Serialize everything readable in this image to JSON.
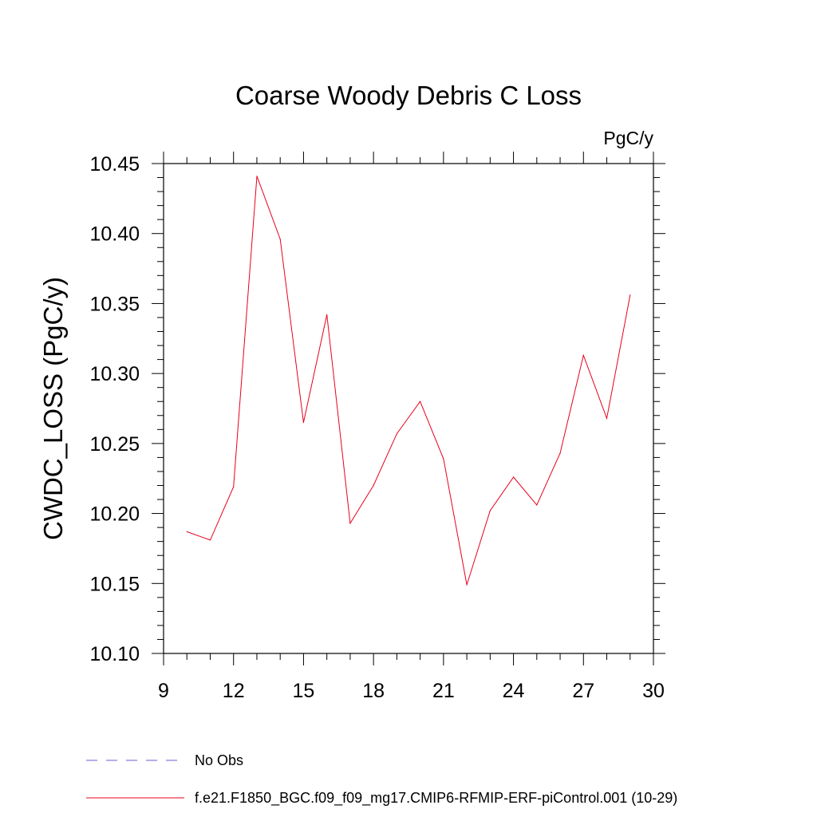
{
  "chart_data": {
    "type": "line",
    "title": "Coarse Woody Debris C Loss",
    "units_label": "PgC/y",
    "ylabel": "CWDC_LOSS  (PgC/y)",
    "xlabel": "",
    "xlim": [
      9,
      30
    ],
    "ylim": [
      10.1,
      10.45
    ],
    "x_ticks": [
      9,
      12,
      15,
      18,
      21,
      24,
      27,
      30
    ],
    "y_ticks": [
      "10.10",
      "10.15",
      "10.20",
      "10.25",
      "10.30",
      "10.35",
      "10.40",
      "10.45"
    ],
    "grid": false,
    "legend_position": "bottom-left",
    "series": [
      {
        "name": "f.e21.F1850_BGC.f09_f09_mg17.CMIP6-RFMIP-ERF-piControl.001 (10-29)",
        "color": "#e8001c",
        "style": "solid",
        "x": [
          10,
          11,
          12,
          13,
          14,
          15,
          16,
          17,
          18,
          19,
          20,
          21,
          22,
          23,
          24,
          25,
          26,
          27,
          28,
          29
        ],
        "y": [
          10.187,
          10.181,
          10.219,
          10.441,
          10.396,
          10.265,
          10.342,
          10.193,
          10.22,
          10.257,
          10.28,
          10.239,
          10.149,
          10.202,
          10.226,
          10.206,
          10.243,
          10.313,
          10.268,
          10.356
        ]
      }
    ],
    "legend": [
      {
        "label": "No Obs",
        "color": "#6f5bd6",
        "style": "dashed"
      },
      {
        "label": "f.e21.F1850_BGC.f09_f09_mg17.CMIP6-RFMIP-ERF-piControl.001 (10-29)",
        "color": "#e8001c",
        "style": "solid"
      }
    ]
  }
}
